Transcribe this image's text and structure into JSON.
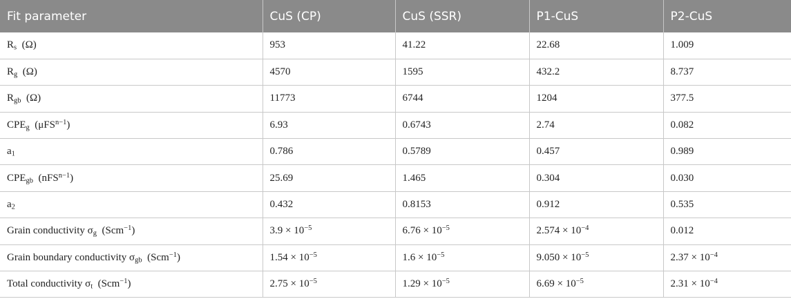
{
  "headers": [
    "Fit parameter",
    "CuS (CP)",
    "CuS (SSR)",
    "P1-CuS",
    "P2-CuS"
  ],
  "rows": [
    {
      "param": {
        "base": "R",
        "sub": "s",
        "sup": "",
        "unit": "(Ω)"
      },
      "values": [
        {
          "m": "953",
          "e": ""
        },
        {
          "m": "41.22",
          "e": ""
        },
        {
          "m": "22.68",
          "e": ""
        },
        {
          "m": "1.009",
          "e": ""
        }
      ]
    },
    {
      "param": {
        "base": "R",
        "sub": "g",
        "sup": "",
        "unit": "(Ω)"
      },
      "values": [
        {
          "m": "4570",
          "e": ""
        },
        {
          "m": "1595",
          "e": ""
        },
        {
          "m": "432.2",
          "e": ""
        },
        {
          "m": "8.737",
          "e": ""
        }
      ]
    },
    {
      "param": {
        "base": "R",
        "sub": "gb",
        "sup": "",
        "unit": "(Ω)"
      },
      "values": [
        {
          "m": "11773",
          "e": ""
        },
        {
          "m": "6744",
          "e": ""
        },
        {
          "m": "1204",
          "e": ""
        },
        {
          "m": "377.5",
          "e": ""
        }
      ]
    },
    {
      "param": {
        "base": "CPE",
        "sub": "g",
        "unit_pre": "(μFS",
        "unit_sup": "n−1",
        "unit_post": ")"
      },
      "values": [
        {
          "m": "6.93",
          "e": ""
        },
        {
          "m": "0.6743",
          "e": ""
        },
        {
          "m": "2.74",
          "e": ""
        },
        {
          "m": "0.082",
          "e": ""
        }
      ]
    },
    {
      "param": {
        "base": "a",
        "sub": "1",
        "sup": "",
        "unit": ""
      },
      "values": [
        {
          "m": "0.786",
          "e": ""
        },
        {
          "m": "0.5789",
          "e": ""
        },
        {
          "m": "0.457",
          "e": ""
        },
        {
          "m": "0.989",
          "e": ""
        }
      ]
    },
    {
      "param": {
        "base": "CPE",
        "sub": "gb",
        "unit_pre": "(nFS",
        "unit_sup": "n−1",
        "unit_post": ")"
      },
      "values": [
        {
          "m": "25.69",
          "e": ""
        },
        {
          "m": "1.465",
          "e": ""
        },
        {
          "m": "0.304",
          "e": ""
        },
        {
          "m": "0.030",
          "e": ""
        }
      ]
    },
    {
      "param": {
        "base": "a",
        "sub": "2",
        "sup": "",
        "unit": ""
      },
      "values": [
        {
          "m": "0.432",
          "e": ""
        },
        {
          "m": "0.8153",
          "e": ""
        },
        {
          "m": "0.912",
          "e": ""
        },
        {
          "m": "0.535",
          "e": ""
        }
      ]
    },
    {
      "param": {
        "base": "Grain conductivity σ",
        "sub": "g",
        "unit_pre": "(Scm",
        "unit_sup": "−1",
        "unit_post": ")"
      },
      "values": [
        {
          "m": "3.9 × 10",
          "e": "−5"
        },
        {
          "m": "6.76 × 10",
          "e": "−5"
        },
        {
          "m": "2.574 × 10",
          "e": "−4"
        },
        {
          "m": "0.012",
          "e": ""
        }
      ]
    },
    {
      "param": {
        "base": "Grain boundary conductivity σ",
        "sub": "gb",
        "unit_pre": "(Scm",
        "unit_sup": "−1",
        "unit_post": ")"
      },
      "values": [
        {
          "m": "1.54 × 10",
          "e": "−5"
        },
        {
          "m": "1.6 × 10",
          "e": "−5"
        },
        {
          "m": "9.050 × 10",
          "e": "−5"
        },
        {
          "m": "2.37 × 10",
          "e": "−4"
        }
      ]
    },
    {
      "param": {
        "base": "Total conductivity σ",
        "sub": "t",
        "unit_pre": "(Scm",
        "unit_sup": "−1",
        "unit_post": ")"
      },
      "values": [
        {
          "m": "2.75 × 10",
          "e": "−5"
        },
        {
          "m": "1.29 × 10",
          "e": "−5"
        },
        {
          "m": "6.69 × 10",
          "e": "−5"
        },
        {
          "m": "2.31 × 10",
          "e": "−4"
        }
      ]
    }
  ]
}
